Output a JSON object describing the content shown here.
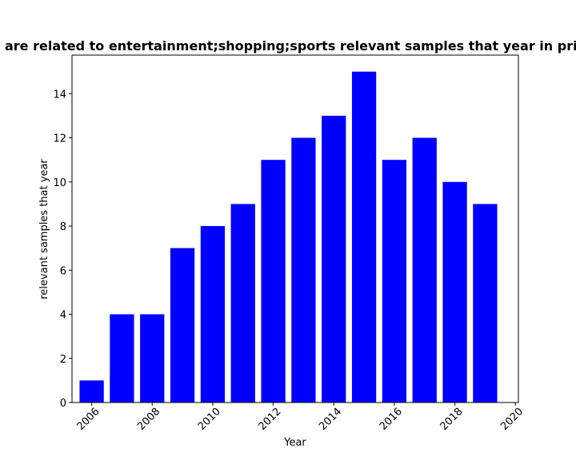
{
  "chart_data": {
    "type": "bar",
    "title": "are related to entertainment;shopping;sports relevant samples that year in priv",
    "xlabel": "Year",
    "ylabel": "relevant samples that year",
    "x": [
      2006,
      2007,
      2008,
      2009,
      2010,
      2011,
      2012,
      2013,
      2014,
      2015,
      2016,
      2017,
      2018,
      2019
    ],
    "values": [
      1,
      4,
      4,
      7,
      8,
      9,
      11,
      12,
      13,
      15,
      11,
      12,
      10,
      9
    ],
    "xlim": [
      2005.35,
      2020.1
    ],
    "ylim": [
      0,
      15.75
    ],
    "xticks": [
      2006,
      2008,
      2010,
      2012,
      2014,
      2016,
      2018,
      2020
    ],
    "yticks": [
      0,
      2,
      4,
      6,
      8,
      10,
      12,
      14
    ],
    "bar_color": "#0000ff",
    "grid": false,
    "legend": "none"
  }
}
